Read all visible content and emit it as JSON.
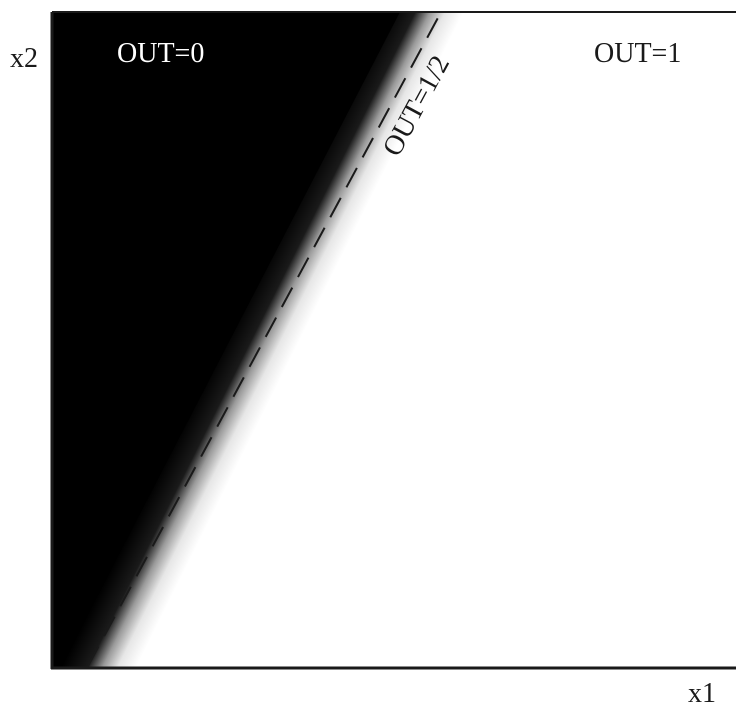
{
  "axes": {
    "x_label": "x1",
    "y_label": "x2"
  },
  "regions": {
    "low_label": "OUT=0",
    "high_label": "OUT=1",
    "boundary_label": "OUT=1/2"
  },
  "colors": {
    "low_region": "#000000",
    "high_region": "#ffffff",
    "axis": "#1a1a1a",
    "boundary_line": "#1a1a1a"
  },
  "boundary": {
    "style": "dashed",
    "transition": "soft-gradient"
  }
}
